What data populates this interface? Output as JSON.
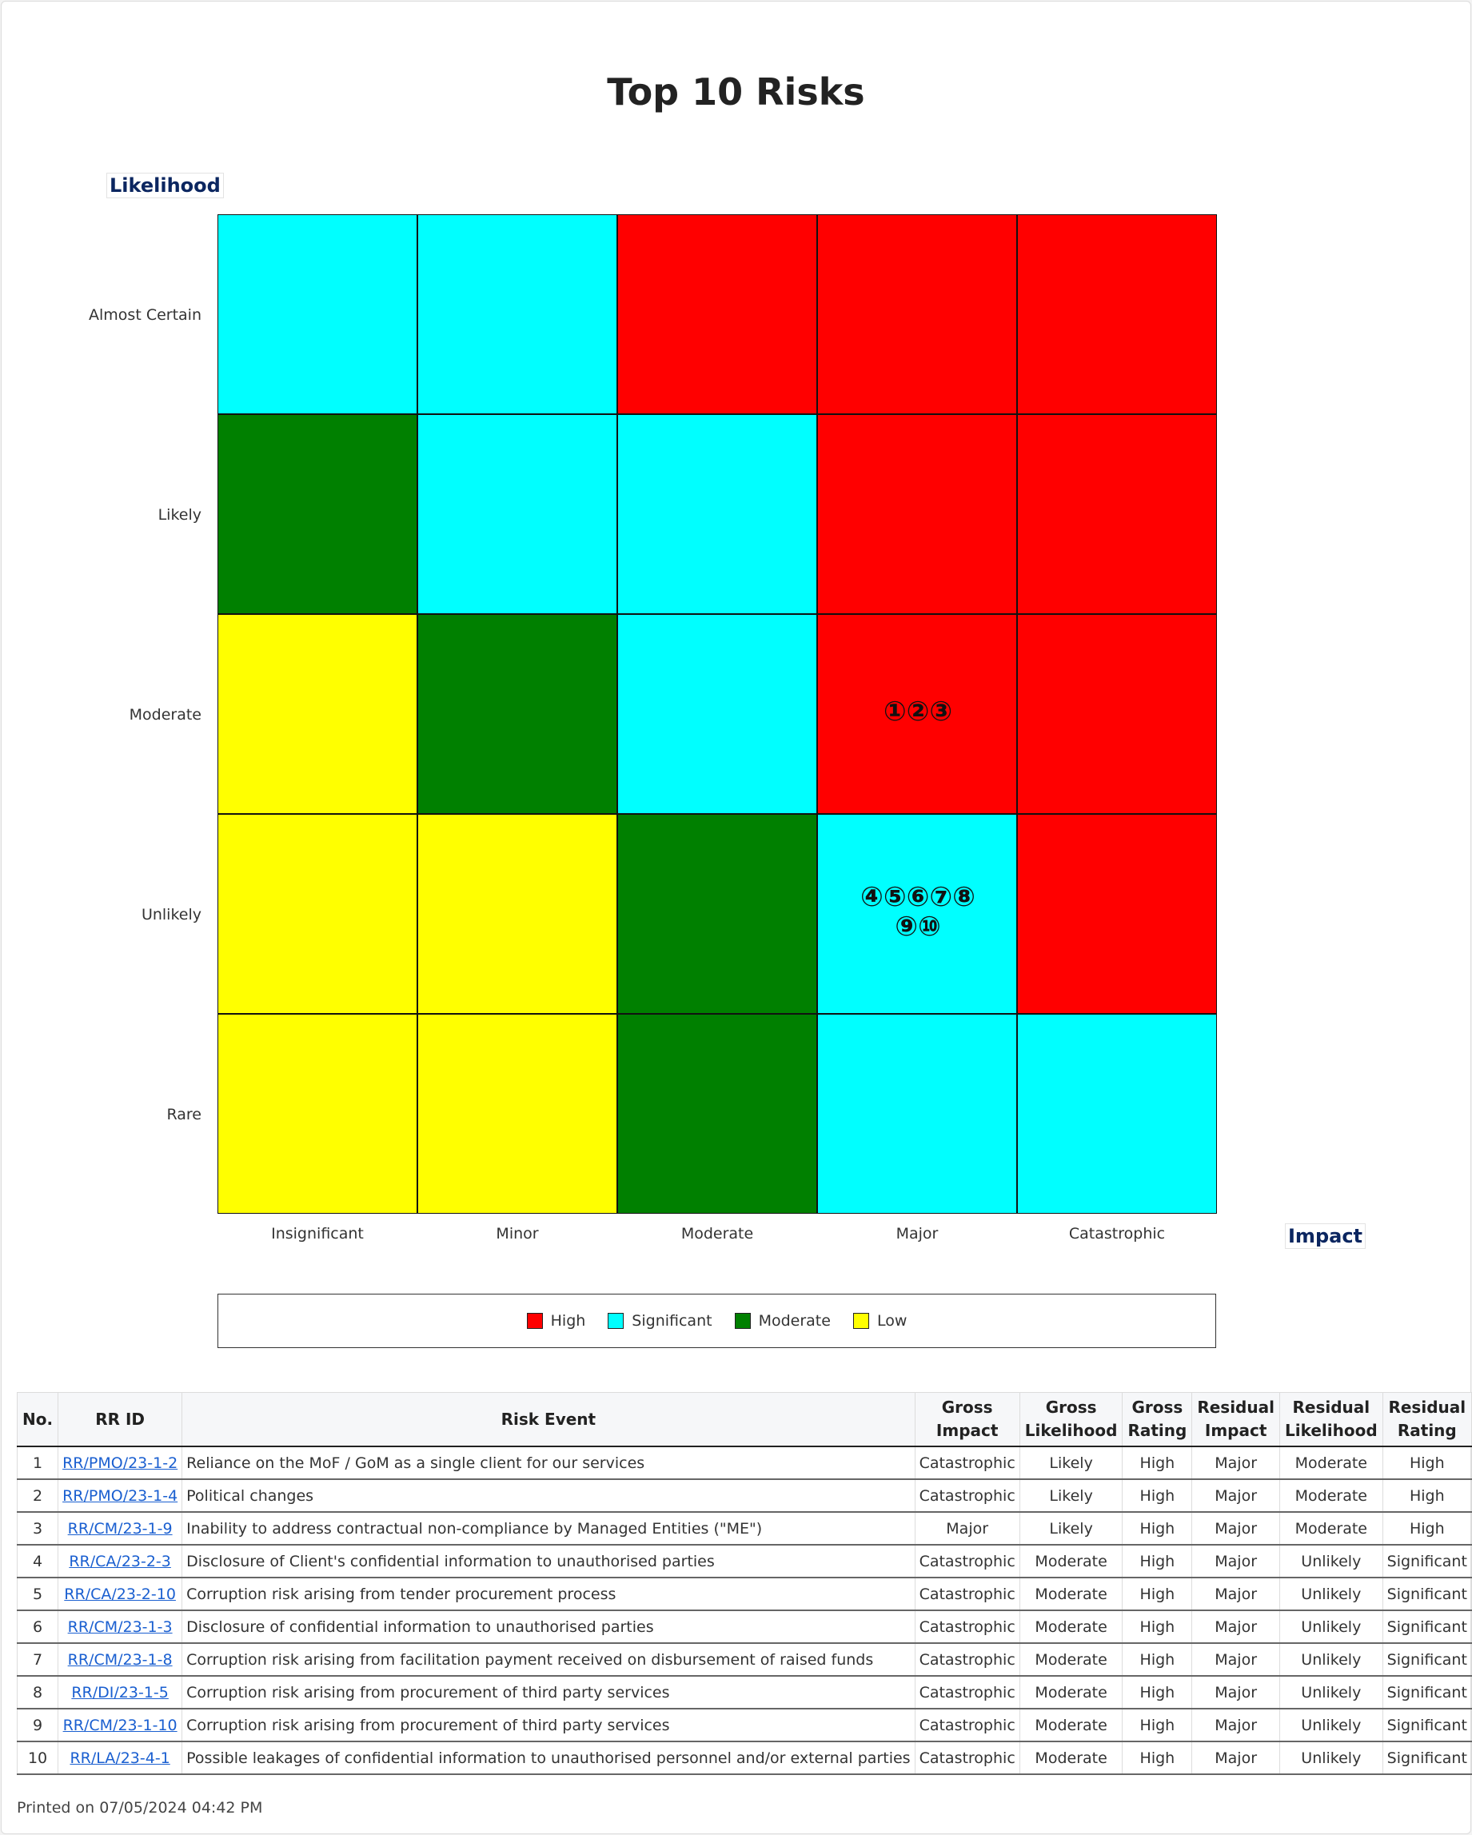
{
  "title": "Top 10 Risks",
  "y_axis_title": "Likelihood",
  "x_axis_title": "Impact",
  "likelihood_levels": [
    "Almost Certain",
    "Likely",
    "Moderate",
    "Unlikely",
    "Rare"
  ],
  "impact_levels": [
    "Insignificant",
    "Minor",
    "Moderate",
    "Major",
    "Catastrophic"
  ],
  "rating_colors": {
    "High": "#ff0000",
    "Significant": "#00ffff",
    "Moderate": "#008000",
    "Low": "#ffff00"
  },
  "matrix_ratings": [
    [
      "Significant",
      "Significant",
      "High",
      "High",
      "High"
    ],
    [
      "Moderate",
      "Significant",
      "Significant",
      "High",
      "High"
    ],
    [
      "Low",
      "Moderate",
      "Significant",
      "High",
      "High"
    ],
    [
      "Low",
      "Low",
      "Moderate",
      "Significant",
      "High"
    ],
    [
      "Low",
      "Low",
      "Moderate",
      "Significant",
      "Significant"
    ]
  ],
  "markers": {
    "moderate_major": [
      "①②③"
    ],
    "unlikely_major": [
      "④⑤⑥⑦⑧",
      "⑨⑩"
    ]
  },
  "legend": [
    {
      "label": "High",
      "color": "#ff0000"
    },
    {
      "label": "Significant",
      "color": "#00ffff"
    },
    {
      "label": "Moderate",
      "color": "#008000"
    },
    {
      "label": "Low",
      "color": "#ffff00"
    }
  ],
  "table": {
    "headers": {
      "no": "No.",
      "rr_id": "RR ID",
      "risk_event": "Risk Event",
      "gross_impact": [
        "Gross",
        "Impact"
      ],
      "gross_likelihood": [
        "Gross",
        "Likelihood"
      ],
      "gross_rating": [
        "Gross",
        "Rating"
      ],
      "residual_impact": [
        "Residual",
        "Impact"
      ],
      "residual_likelihood": [
        "Residual",
        "Likelihood"
      ],
      "residual_rating": [
        "Residual",
        "Rating"
      ]
    },
    "rows": [
      {
        "no": "1",
        "rr_id": "RR/PMO/23-1-2",
        "event": "Reliance on the MoF / GoM as a single client for our services",
        "gi": "Catastrophic",
        "gl": "Likely",
        "gr": "High",
        "ri": "Major",
        "rl": "Moderate",
        "rr": "High"
      },
      {
        "no": "2",
        "rr_id": "RR/PMO/23-1-4",
        "event": "Political changes",
        "gi": "Catastrophic",
        "gl": "Likely",
        "gr": "High",
        "ri": "Major",
        "rl": "Moderate",
        "rr": "High"
      },
      {
        "no": "3",
        "rr_id": "RR/CM/23-1-9",
        "event": "Inability to address contractual non-compliance by Managed Entities (\"ME\")",
        "gi": "Major",
        "gl": "Likely",
        "gr": "High",
        "ri": "Major",
        "rl": "Moderate",
        "rr": "High"
      },
      {
        "no": "4",
        "rr_id": "RR/CA/23-2-3",
        "event": "Disclosure of Client's confidential information to unauthorised parties",
        "gi": "Catastrophic",
        "gl": "Moderate",
        "gr": "High",
        "ri": "Major",
        "rl": "Unlikely",
        "rr": "Significant"
      },
      {
        "no": "5",
        "rr_id": "RR/CA/23-2-10",
        "event": "Corruption risk arising from tender procurement process",
        "gi": "Catastrophic",
        "gl": "Moderate",
        "gr": "High",
        "ri": "Major",
        "rl": "Unlikely",
        "rr": "Significant"
      },
      {
        "no": "6",
        "rr_id": "RR/CM/23-1-3",
        "event": "Disclosure of confidential information to unauthorised parties",
        "gi": "Catastrophic",
        "gl": "Moderate",
        "gr": "High",
        "ri": "Major",
        "rl": "Unlikely",
        "rr": "Significant"
      },
      {
        "no": "7",
        "rr_id": "RR/CM/23-1-8",
        "event": "Corruption risk arising from facilitation payment received on disbursement of raised funds",
        "gi": "Catastrophic",
        "gl": "Moderate",
        "gr": "High",
        "ri": "Major",
        "rl": "Unlikely",
        "rr": "Significant"
      },
      {
        "no": "8",
        "rr_id": "RR/DI/23-1-5",
        "event": "Corruption risk arising from procurement of third party services",
        "gi": "Catastrophic",
        "gl": "Moderate",
        "gr": "High",
        "ri": "Major",
        "rl": "Unlikely",
        "rr": "Significant"
      },
      {
        "no": "9",
        "rr_id": "RR/CM/23-1-10",
        "event": "Corruption risk arising from procurement of third party services",
        "gi": "Catastrophic",
        "gl": "Moderate",
        "gr": "High",
        "ri": "Major",
        "rl": "Unlikely",
        "rr": "Significant"
      },
      {
        "no": "10",
        "rr_id": "RR/LA/23-4-1",
        "event": "Possible leakages of confidential information to unauthorised personnel and/or external parties",
        "gi": "Catastrophic",
        "gl": "Moderate",
        "gr": "High",
        "ri": "Major",
        "rl": "Unlikely",
        "rr": "Significant"
      }
    ]
  },
  "printed_on": "Printed on 07/05/2024 04:42 PM"
}
